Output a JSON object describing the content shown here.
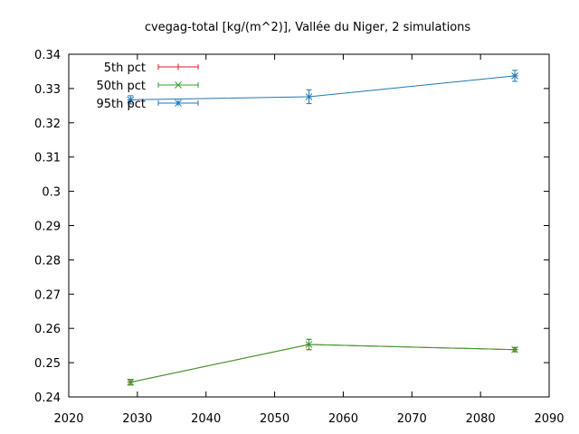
{
  "chart_data": {
    "type": "line",
    "title": "cvegag-total [kg/(m^2)], Vallée du Niger, 2 simulations",
    "xlabel": "",
    "ylabel": "",
    "xlim": [
      2020,
      2090
    ],
    "ylim": [
      0.24,
      0.34
    ],
    "xticks": [
      2020,
      2030,
      2040,
      2050,
      2060,
      2070,
      2080,
      2090
    ],
    "xtick_labels": [
      "2020",
      "2030",
      "2040",
      "2050",
      "2060",
      "2070",
      "2080",
      "2090"
    ],
    "yticks": [
      0.24,
      0.25,
      0.26,
      0.27,
      0.28,
      0.29,
      0.3,
      0.31,
      0.32,
      0.33,
      0.34
    ],
    "ytick_labels": [
      "0.24",
      "0.25",
      "0.26",
      "0.27",
      "0.28",
      "0.29",
      "0.3",
      "0.31",
      "0.32",
      "0.33",
      "0.34"
    ],
    "grid": false,
    "legend_position": "top-left",
    "series": [
      {
        "name": "5th pct",
        "color": "#e41a1c",
        "marker": "plus",
        "x": [
          2029,
          2055,
          2085
        ],
        "y": [
          0.2443,
          0.2553,
          0.2538
        ],
        "err": [
          0.0008,
          0.0015,
          0.0006
        ]
      },
      {
        "name": "50th pct",
        "color": "#2ca02c",
        "marker": "cross",
        "x": [
          2029,
          2055,
          2085
        ],
        "y": [
          0.2443,
          0.2553,
          0.2538
        ],
        "err": [
          0.0008,
          0.0015,
          0.0006
        ]
      },
      {
        "name": "95th pct",
        "color": "#1f77b4",
        "marker": "star",
        "x": [
          2029,
          2055,
          2085
        ],
        "y": [
          0.3267,
          0.3276,
          0.3337
        ],
        "err": [
          0.0012,
          0.002,
          0.0016
        ]
      }
    ]
  }
}
